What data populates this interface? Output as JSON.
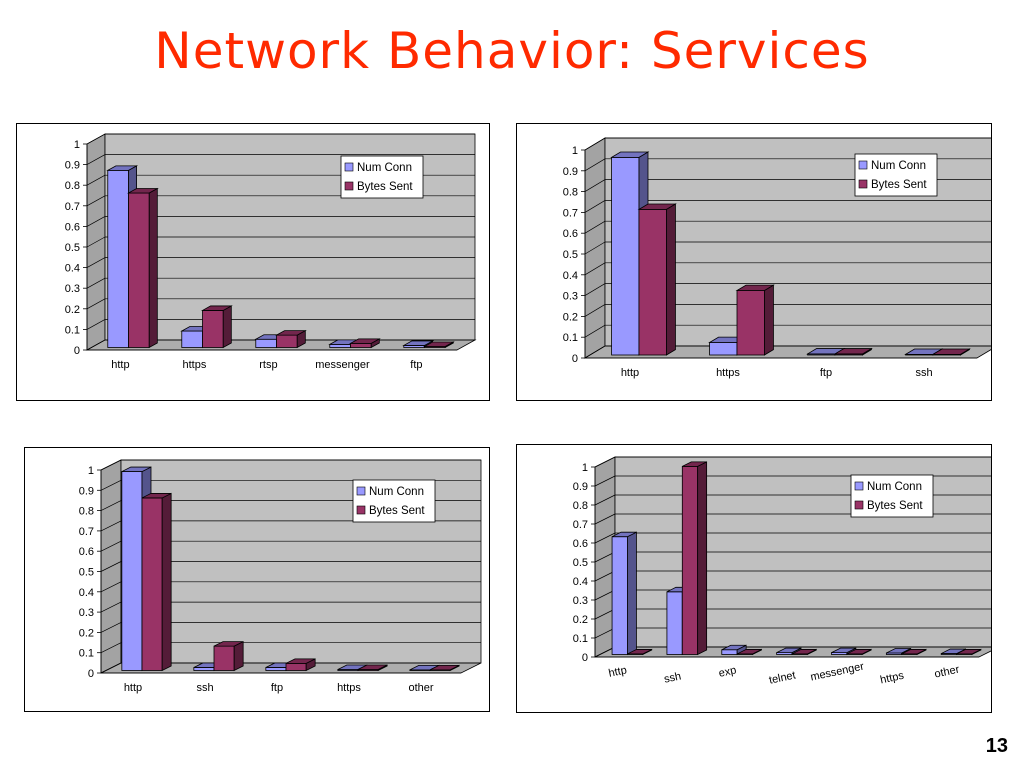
{
  "slide": {
    "title": "Network Behavior: Services",
    "page_number": "13"
  },
  "colors": {
    "num_conn": "#9999ff",
    "bytes_sent": "#993366",
    "plot_bg": "#c0c0c0",
    "grid": "#000000"
  },
  "chart_data": [
    {
      "type": "bar",
      "style": "3d-clustered-column",
      "categories": [
        "http",
        "https",
        "rtsp",
        "messenger",
        "ftp"
      ],
      "series": [
        {
          "name": "Num Conn",
          "values": [
            0.86,
            0.08,
            0.04,
            0.015,
            0.01
          ]
        },
        {
          "name": "Bytes Sent",
          "values": [
            0.75,
            0.18,
            0.06,
            0.02,
            0.005
          ]
        }
      ],
      "ylim": [
        0,
        1
      ],
      "yticks": [
        "0",
        "0.1",
        "0.2",
        "0.3",
        "0.4",
        "0.5",
        "0.6",
        "0.7",
        "0.8",
        "0.9",
        "1"
      ],
      "grid": true,
      "legend": "top-right",
      "category_label_rotation": 0
    },
    {
      "type": "bar",
      "style": "3d-clustered-column",
      "categories": [
        "http",
        "https",
        "ftp",
        "ssh"
      ],
      "series": [
        {
          "name": "Num Conn",
          "values": [
            0.95,
            0.06,
            0.005,
            0.003
          ]
        },
        {
          "name": "Bytes Sent",
          "values": [
            0.7,
            0.31,
            0.005,
            0.003
          ]
        }
      ],
      "ylim": [
        0,
        1
      ],
      "yticks": [
        "0",
        "0.1",
        "0.2",
        "0.3",
        "0.4",
        "0.5",
        "0.6",
        "0.7",
        "0.8",
        "0.9",
        "1"
      ],
      "grid": true,
      "legend": "top-right",
      "category_label_rotation": 0
    },
    {
      "type": "bar",
      "style": "3d-clustered-column",
      "categories": [
        "http",
        "ssh",
        "ftp",
        "https",
        "other"
      ],
      "series": [
        {
          "name": "Num Conn",
          "values": [
            0.98,
            0.015,
            0.015,
            0.005,
            0.003
          ]
        },
        {
          "name": "Bytes Sent",
          "values": [
            0.85,
            0.12,
            0.035,
            0.005,
            0.003
          ]
        }
      ],
      "ylim": [
        0,
        1
      ],
      "yticks": [
        "0",
        "0.1",
        "0.2",
        "0.3",
        "0.4",
        "0.5",
        "0.6",
        "0.7",
        "0.8",
        "0.9",
        "1"
      ],
      "grid": true,
      "legend": "top-right",
      "category_label_rotation": 0
    },
    {
      "type": "bar",
      "style": "3d-clustered-column",
      "categories": [
        "http",
        "ssh",
        "exp",
        "telnet",
        "messenger",
        "https",
        "other"
      ],
      "series": [
        {
          "name": "Num Conn",
          "values": [
            0.62,
            0.33,
            0.025,
            0.01,
            0.01,
            0.008,
            0.005
          ]
        },
        {
          "name": "Bytes Sent",
          "values": [
            0.003,
            0.99,
            0.003,
            0.003,
            0.003,
            0.003,
            0.003
          ]
        }
      ],
      "ylim": [
        0,
        1
      ],
      "yticks": [
        "0",
        "0.1",
        "0.2",
        "0.3",
        "0.4",
        "0.5",
        "0.6",
        "0.7",
        "0.8",
        "0.9",
        "1"
      ],
      "grid": true,
      "legend": "top-right",
      "category_label_rotation": -12
    }
  ]
}
